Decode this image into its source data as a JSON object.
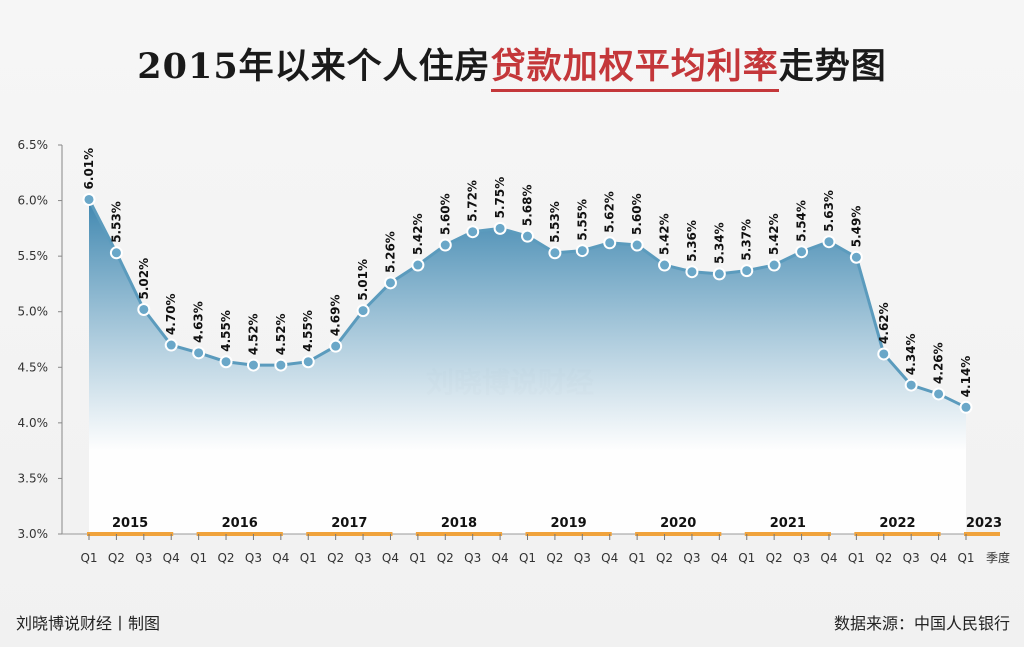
{
  "title": {
    "part1": "2015年以来个人住房",
    "highlight": "贷款加权平均利率",
    "part2": "走势图"
  },
  "watermark": "刘晓博说财经",
  "footer": {
    "left": "刘晓博说财经丨制图",
    "right": "数据来源：中国人民银行"
  },
  "colors": {
    "line": "#5b9bbd",
    "fill_top": "#3f87b0",
    "highlight": "#c4373a",
    "year_bar": "#f0a33c"
  },
  "chart_data": {
    "type": "area",
    "ylim": [
      3.0,
      6.5
    ],
    "yticks": [
      "3.0%",
      "3.5%",
      "4.0%",
      "4.5%",
      "5.0%",
      "5.5%",
      "6.0%",
      "6.5%"
    ],
    "xlabel": "季度",
    "years": [
      "2015",
      "2016",
      "2017",
      "2018",
      "2019",
      "2020",
      "2021",
      "2022",
      "2023"
    ],
    "quarters": [
      "Q1",
      "Q2",
      "Q3",
      "Q4",
      "Q1",
      "Q2",
      "Q3",
      "Q4",
      "Q1",
      "Q2",
      "Q3",
      "Q4",
      "Q1",
      "Q2",
      "Q3",
      "Q4",
      "Q1",
      "Q2",
      "Q3",
      "Q4",
      "Q1",
      "Q2",
      "Q3",
      "Q4",
      "Q1",
      "Q2",
      "Q3",
      "Q4",
      "Q1",
      "Q2",
      "Q3",
      "Q4",
      "Q1"
    ],
    "values": [
      6.01,
      5.53,
      5.02,
      4.7,
      4.63,
      4.55,
      4.52,
      4.52,
      4.55,
      4.69,
      5.01,
      5.26,
      5.42,
      5.6,
      5.72,
      5.75,
      5.68,
      5.53,
      5.55,
      5.62,
      5.6,
      5.42,
      5.36,
      5.34,
      5.37,
      5.42,
      5.54,
      5.63,
      5.49,
      4.62,
      4.34,
      4.26,
      4.14
    ],
    "labels": [
      "6.01%",
      "5.53%",
      "5.02%",
      "4.70%",
      "4.63%",
      "4.55%",
      "4.52%",
      "4.52%",
      "4.55%",
      "4.69%",
      "5.01%",
      "5.26%",
      "5.42%",
      "5.60%",
      "5.72%",
      "5.75%",
      "5.68%",
      "5.53%",
      "5.55%",
      "5.62%",
      "5.60%",
      "5.42%",
      "5.36%",
      "5.34%",
      "5.37%",
      "5.42%",
      "5.54%",
      "5.63%",
      "5.49%",
      "4.62%",
      "4.34%",
      "4.26%",
      "4.14%"
    ],
    "grid": false
  }
}
